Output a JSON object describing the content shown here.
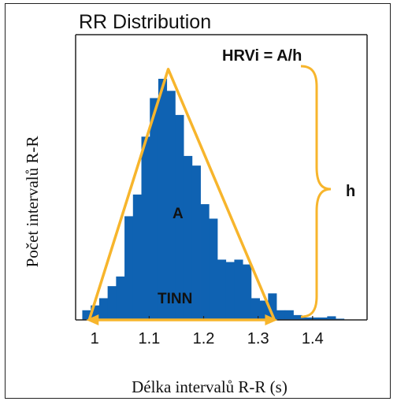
{
  "chart_data": {
    "type": "bar",
    "title": "RR Distribution",
    "xlabel": "Délka intervalů R-R (s)",
    "ylabel": "Počet intervalů R-R",
    "xlim": [
      0.965,
      1.5
    ],
    "ylim": [
      0,
      100
    ],
    "xticks": [
      "1",
      "1.1",
      "1.2",
      "1.3",
      "1.4"
    ],
    "xtick_values": [
      1.0,
      1.1,
      1.2,
      1.3,
      1.4
    ],
    "bin_width": 0.0155,
    "bins": [
      {
        "x": 0.985,
        "y": 4
      },
      {
        "x": 1.0005,
        "y": 6
      },
      {
        "x": 1.016,
        "y": 9
      },
      {
        "x": 1.0315,
        "y": 14
      },
      {
        "x": 1.047,
        "y": 18
      },
      {
        "x": 1.0625,
        "y": 43
      },
      {
        "x": 1.078,
        "y": 52
      },
      {
        "x": 1.0935,
        "y": 76
      },
      {
        "x": 1.109,
        "y": 92
      },
      {
        "x": 1.1245,
        "y": 100
      },
      {
        "x": 1.14,
        "y": 95
      },
      {
        "x": 1.1555,
        "y": 85
      },
      {
        "x": 1.171,
        "y": 68
      },
      {
        "x": 1.1865,
        "y": 64
      },
      {
        "x": 1.202,
        "y": 48
      },
      {
        "x": 1.2175,
        "y": 42
      },
      {
        "x": 1.233,
        "y": 25
      },
      {
        "x": 1.2485,
        "y": 24
      },
      {
        "x": 1.264,
        "y": 25
      },
      {
        "x": 1.2795,
        "y": 23
      },
      {
        "x": 1.295,
        "y": 9
      },
      {
        "x": 1.3105,
        "y": 8
      },
      {
        "x": 1.326,
        "y": 11
      },
      {
        "x": 1.3415,
        "y": 4
      },
      {
        "x": 1.357,
        "y": 4
      },
      {
        "x": 1.3725,
        "y": 2
      },
      {
        "x": 1.388,
        "y": 1
      },
      {
        "x": 1.4035,
        "y": 1
      },
      {
        "x": 1.419,
        "y": 1
      },
      {
        "x": 1.4345,
        "y": 1.5
      },
      {
        "x": 1.45,
        "y": 0.5
      }
    ],
    "triangle": {
      "left_x": 0.99,
      "apex_x": 1.135,
      "apex_y": 104,
      "right_x": 1.33,
      "base_y": 0
    },
    "annotations": {
      "formula": "HRVi = A/h",
      "area_label": "A",
      "base_label": "TINN",
      "height_label": "h"
    },
    "colors": {
      "bars": "#0f62b2",
      "triangle": "#f7b52c",
      "frame": "#222222"
    },
    "grid": false,
    "legend": "none"
  }
}
